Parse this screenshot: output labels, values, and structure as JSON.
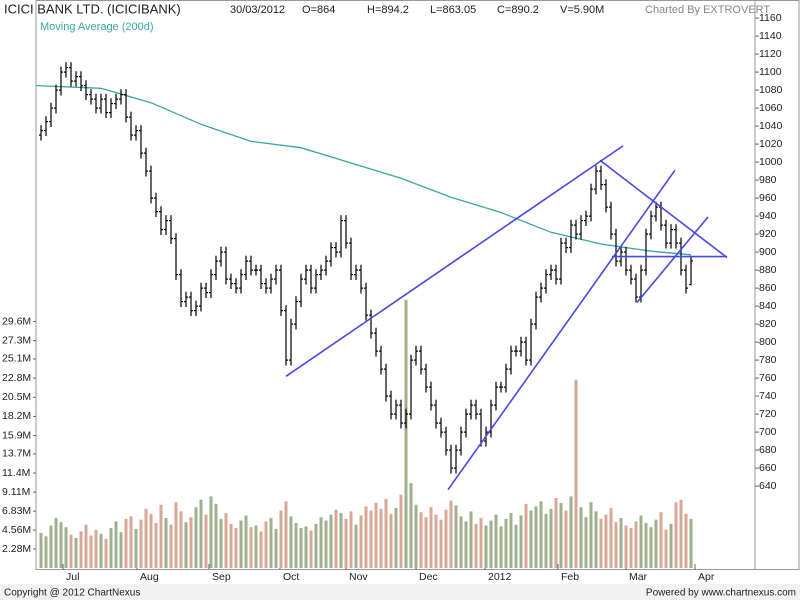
{
  "chart_data": {
    "type": "ohlc",
    "title": "ICICI BANK LTD. (ICICIBANK)",
    "date": "30/03/2012",
    "stats": [
      "O=864",
      "H=894.2",
      "L=863.05",
      "C=890.2",
      "V=5.90M"
    ],
    "credit": "Charted By EXTROVERT",
    "bar_color": "#000000",
    "x": [
      1,
      2,
      3,
      4,
      5,
      6,
      7,
      8,
      9,
      10,
      11,
      12,
      13,
      14,
      15,
      16,
      17,
      18,
      19,
      20,
      21,
      22,
      23,
      24,
      25,
      26,
      27,
      28,
      29,
      30,
      31,
      32,
      33,
      34,
      35,
      36,
      37,
      38,
      39,
      40,
      41,
      42,
      43,
      44,
      45,
      46,
      47,
      48,
      49,
      50,
      51,
      52,
      53,
      54,
      55,
      56,
      57,
      58,
      59,
      60,
      61,
      62,
      63,
      64,
      65,
      66,
      67,
      68,
      69,
      70,
      71,
      72,
      73,
      74,
      75,
      76,
      77,
      78,
      79,
      80,
      81,
      82,
      83,
      84,
      85,
      86,
      87,
      88,
      89,
      90,
      91,
      92,
      93,
      94,
      95,
      96,
      97,
      98,
      99,
      100,
      101,
      102,
      103,
      104,
      105,
      106,
      107,
      108,
      109,
      110,
      111,
      112,
      113,
      114,
      115,
      116,
      117,
      118,
      119,
      120,
      121,
      122,
      123,
      124,
      125,
      126,
      127,
      128,
      129,
      130,
      131
    ],
    "ohlc": [
      [
        1030,
        1041,
        1024,
        1035
      ],
      [
        1035,
        1051,
        1029,
        1045
      ],
      [
        1045,
        1066,
        1039,
        1060
      ],
      [
        1060,
        1086,
        1054,
        1080
      ],
      [
        1080,
        1106,
        1074,
        1100
      ],
      [
        1100,
        1111,
        1094,
        1105
      ],
      [
        1105,
        1111,
        1084,
        1090
      ],
      [
        1090,
        1101,
        1084,
        1095
      ],
      [
        1095,
        1101,
        1079,
        1085
      ],
      [
        1085,
        1091,
        1069,
        1075
      ],
      [
        1075,
        1081,
        1064,
        1070
      ],
      [
        1070,
        1076,
        1054,
        1060
      ],
      [
        1060,
        1076,
        1054,
        1070
      ],
      [
        1070,
        1076,
        1049,
        1055
      ],
      [
        1055,
        1071,
        1049,
        1065
      ],
      [
        1065,
        1076,
        1059,
        1070
      ],
      [
        1070,
        1081,
        1064,
        1075
      ],
      [
        1075,
        1081,
        1044,
        1050
      ],
      [
        1050,
        1056,
        1024,
        1030
      ],
      [
        1030,
        1041,
        1024,
        1035
      ],
      [
        1035,
        1041,
        1004,
        1010
      ],
      [
        1010,
        1016,
        984,
        990
      ],
      [
        990,
        996,
        954,
        960
      ],
      [
        960,
        966,
        939,
        945
      ],
      [
        945,
        951,
        919,
        925
      ],
      [
        925,
        941,
        919,
        935
      ],
      [
        935,
        941,
        909,
        915
      ],
      [
        915,
        921,
        869,
        875
      ],
      [
        875,
        881,
        839,
        845
      ],
      [
        845,
        856,
        839,
        850
      ],
      [
        850,
        856,
        829,
        835
      ],
      [
        835,
        846,
        829,
        840
      ],
      [
        840,
        866,
        834,
        860
      ],
      [
        860,
        866,
        849,
        855
      ],
      [
        855,
        881,
        849,
        875
      ],
      [
        875,
        896,
        869,
        890
      ],
      [
        890,
        906,
        884,
        900
      ],
      [
        900,
        906,
        864,
        870
      ],
      [
        870,
        876,
        859,
        865
      ],
      [
        865,
        871,
        854,
        860
      ],
      [
        860,
        881,
        854,
        875
      ],
      [
        875,
        896,
        869,
        890
      ],
      [
        890,
        896,
        874,
        880
      ],
      [
        880,
        886,
        874,
        880
      ],
      [
        880,
        886,
        859,
        865
      ],
      [
        865,
        871,
        854,
        860
      ],
      [
        860,
        876,
        854,
        870
      ],
      [
        870,
        886,
        864,
        880
      ],
      [
        880,
        886,
        829,
        835
      ],
      [
        835,
        841,
        774,
        780
      ],
      [
        780,
        826,
        774,
        820
      ],
      [
        820,
        851,
        814,
        845
      ],
      [
        845,
        876,
        839,
        870
      ],
      [
        870,
        886,
        864,
        880
      ],
      [
        880,
        886,
        854,
        860
      ],
      [
        860,
        881,
        854,
        875
      ],
      [
        875,
        886,
        869,
        880
      ],
      [
        880,
        896,
        874,
        890
      ],
      [
        890,
        911,
        884,
        905
      ],
      [
        905,
        911,
        894,
        900
      ],
      [
        900,
        941,
        894,
        935
      ],
      [
        935,
        941,
        904,
        910
      ],
      [
        910,
        916,
        869,
        875
      ],
      [
        875,
        886,
        869,
        880
      ],
      [
        880,
        886,
        854,
        860
      ],
      [
        860,
        866,
        824,
        830
      ],
      [
        830,
        836,
        804,
        810
      ],
      [
        810,
        816,
        784,
        790
      ],
      [
        790,
        796,
        764,
        770
      ],
      [
        770,
        776,
        734,
        740
      ],
      [
        740,
        746,
        714,
        720
      ],
      [
        720,
        736,
        714,
        730
      ],
      [
        730,
        736,
        704,
        710
      ],
      [
        710,
        726,
        704,
        720
      ],
      [
        720,
        786,
        714,
        780
      ],
      [
        780,
        796,
        774,
        790
      ],
      [
        790,
        796,
        764,
        770
      ],
      [
        770,
        776,
        744,
        750
      ],
      [
        750,
        756,
        724,
        730
      ],
      [
        730,
        736,
        704,
        710
      ],
      [
        710,
        716,
        694,
        700
      ],
      [
        700,
        706,
        674,
        680
      ],
      [
        680,
        686,
        654,
        660
      ],
      [
        660,
        686,
        654,
        680
      ],
      [
        680,
        706,
        674,
        700
      ],
      [
        700,
        726,
        694,
        720
      ],
      [
        720,
        736,
        714,
        730
      ],
      [
        730,
        736,
        714,
        720
      ],
      [
        720,
        726,
        684,
        690
      ],
      [
        690,
        706,
        684,
        700
      ],
      [
        700,
        736,
        694,
        730
      ],
      [
        730,
        756,
        724,
        750
      ],
      [
        750,
        756,
        744,
        750
      ],
      [
        750,
        776,
        744,
        770
      ],
      [
        770,
        796,
        764,
        790
      ],
      [
        790,
        796,
        784,
        790
      ],
      [
        790,
        806,
        784,
        800
      ],
      [
        800,
        806,
        774,
        780
      ],
      [
        780,
        826,
        774,
        820
      ],
      [
        820,
        856,
        814,
        850
      ],
      [
        850,
        866,
        844,
        860
      ],
      [
        860,
        881,
        854,
        875
      ],
      [
        875,
        886,
        869,
        880
      ],
      [
        880,
        886,
        864,
        870
      ],
      [
        870,
        916,
        864,
        910
      ],
      [
        910,
        916,
        899,
        905
      ],
      [
        905,
        936,
        899,
        930
      ],
      [
        930,
        936,
        914,
        920
      ],
      [
        920,
        941,
        914,
        935
      ],
      [
        935,
        946,
        929,
        940
      ],
      [
        940,
        976,
        934,
        970
      ],
      [
        970,
        996,
        964,
        990
      ],
      [
        990,
        996,
        969,
        975
      ],
      [
        975,
        981,
        944,
        950
      ],
      [
        950,
        956,
        914,
        920
      ],
      [
        920,
        926,
        884,
        890
      ],
      [
        890,
        906,
        884,
        900
      ],
      [
        900,
        906,
        874,
        880
      ],
      [
        880,
        886,
        864,
        870
      ],
      [
        870,
        876,
        844,
        850
      ],
      [
        850,
        886,
        844,
        880
      ],
      [
        880,
        926,
        874,
        920
      ],
      [
        920,
        946,
        914,
        940
      ],
      [
        940,
        956,
        934,
        950
      ],
      [
        950,
        956,
        924,
        930
      ],
      [
        930,
        936,
        904,
        910
      ],
      [
        910,
        931,
        904,
        925
      ],
      [
        925,
        931,
        904,
        910
      ],
      [
        910,
        916,
        874,
        880
      ],
      [
        880,
        886,
        854,
        860
      ],
      [
        864,
        894.2,
        863.05,
        890.2
      ]
    ],
    "volume": {
      "up_color": "#9fb08f",
      "down_color": "#d8a796",
      "values": [
        4.2,
        3.8,
        5.1,
        6.0,
        5.5,
        4.9,
        4.0,
        3.6,
        4.4,
        5.2,
        3.9,
        4.6,
        4.1,
        3.5,
        4.8,
        5.6,
        4.3,
        5.9,
        6.2,
        4.7,
        5.8,
        7.1,
        6.5,
        5.4,
        7.6,
        6.0,
        5.2,
        7.9,
        6.8,
        5.5,
        6.1,
        7.3,
        8.2,
        6.4,
        8.6,
        7.7,
        5.9,
        6.6,
        5.3,
        4.8,
        5.7,
        6.3,
        4.9,
        5.1,
        4.4,
        5.6,
        6.0,
        4.7,
        6.9,
        8.0,
        6.2,
        5.4,
        4.8,
        5.0,
        4.5,
        5.3,
        6.1,
        5.7,
        6.4,
        7.0,
        6.6,
        5.9,
        6.8,
        5.2,
        6.3,
        7.4,
        6.9,
        7.8,
        7.1,
        8.3,
        6.5,
        7.2,
        8.8,
        32.2,
        10.2,
        7.6,
        6.7,
        6.1,
        7.3,
        6.4,
        5.8,
        7.0,
        8.1,
        7.5,
        6.2,
        5.6,
        6.8,
        5.3,
        6.0,
        5.1,
        5.7,
        6.4,
        5.0,
        5.9,
        6.6,
        5.2,
        6.3,
        7.7,
        6.9,
        7.4,
        8.0,
        6.5,
        7.1,
        8.4,
        7.8,
        6.9,
        8.6,
        22.6,
        7.3,
        6.1,
        7.9,
        6.8,
        5.9,
        6.4,
        7.2,
        5.5,
        6.0,
        5.1,
        4.8,
        5.6,
        6.3,
        5.4,
        4.9,
        5.8,
        6.7,
        4.6,
        5.3,
        7.9,
        8.2,
        6.5,
        5.9
      ]
    },
    "moving_average": {
      "name": "Moving Average (200d)",
      "color": "#3aa6a0",
      "x": [
        0,
        13,
        23,
        33,
        43,
        53,
        63,
        73,
        83,
        93,
        103,
        113,
        123,
        131
      ],
      "values": [
        1085,
        1082,
        1066,
        1042,
        1023,
        1016,
        999,
        982,
        961,
        944,
        922,
        909,
        901,
        897
      ]
    },
    "trend_lines": {
      "color": "#4848e0",
      "lines": [
        {
          "x": [
            50,
            117.4
          ],
          "values": [
            762,
            1018
          ]
        },
        {
          "x": [
            82.4,
            127.8
          ],
          "values": [
            636,
            991
          ]
        },
        {
          "x": [
            112.8,
            138.2
          ],
          "values": [
            1002,
            894
          ]
        },
        {
          "x": [
            115.2,
            138.2
          ],
          "values": [
            895,
            895
          ]
        },
        {
          "x": [
            120.2,
            134.4
          ],
          "values": [
            844,
            939
          ]
        }
      ]
    },
    "xlim": [
      0,
      143.8
    ],
    "xticks": [
      {
        "value": 5.4,
        "label": "Jul"
      },
      {
        "value": 20.2,
        "label": "Aug"
      },
      {
        "value": 34.6,
        "label": "Sep"
      },
      {
        "value": 48.8,
        "label": "Oct"
      },
      {
        "value": 62,
        "label": "Nov"
      },
      {
        "value": 76,
        "label": "Dec"
      },
      {
        "value": 89.8,
        "label": "2012"
      },
      {
        "value": 104.4,
        "label": "Feb"
      },
      {
        "value": 118,
        "label": "Mar"
      },
      {
        "value": 131.8,
        "label": "Apr"
      }
    ],
    "ylim": [
      549,
      1169
    ],
    "yticks": [
      640,
      660,
      680,
      700,
      720,
      740,
      760,
      780,
      800,
      820,
      840,
      860,
      880,
      900,
      920,
      940,
      960,
      980,
      1000,
      1020,
      1040,
      1060,
      1080,
      1100,
      1120,
      1140,
      1160
    ],
    "y2lim": [
      0,
      67
    ],
    "y2ticks": [
      {
        "value": 2.28,
        "label": "2.28M"
      },
      {
        "value": 4.56,
        "label": "4.56M"
      },
      {
        "value": 6.83,
        "label": "6.83M"
      },
      {
        "value": 9.11,
        "label": "9.11M"
      },
      {
        "value": 11.4,
        "label": "11.4M"
      },
      {
        "value": 13.7,
        "label": "13.7M"
      },
      {
        "value": 15.9,
        "label": "15.9M"
      },
      {
        "value": 18.2,
        "label": "18.2M"
      },
      {
        "value": 20.5,
        "label": "20.5M"
      },
      {
        "value": 22.8,
        "label": "22.8M"
      },
      {
        "value": 25.1,
        "label": "25.1M"
      },
      {
        "value": 27.3,
        "label": "27.3M"
      },
      {
        "value": 29.6,
        "label": "29.6M"
      }
    ]
  },
  "footer": {
    "copyright": "Copyright @ 2012 ChartNexus",
    "powered": "Powered by www.chartnexus.com"
  }
}
